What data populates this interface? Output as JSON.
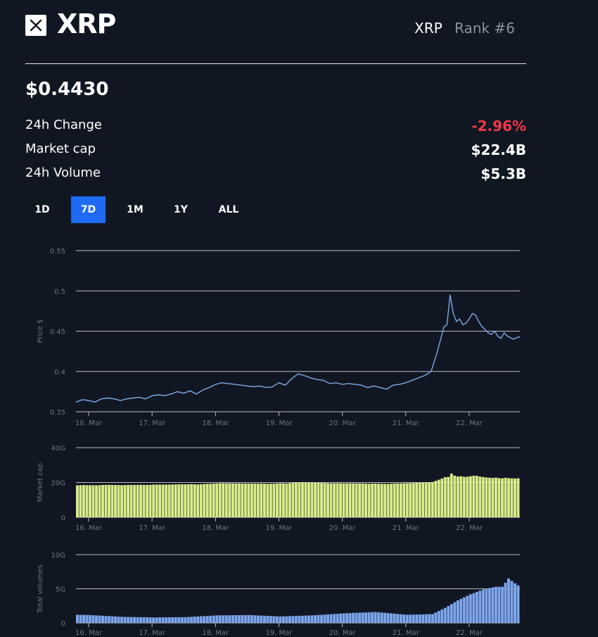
{
  "header": {
    "coin_name": "XRP",
    "ticker": "XRP",
    "rank": "Rank #6",
    "logo_icon": "xrp-logo-icon"
  },
  "price": "$0.4430",
  "stats": {
    "change_label": "24h Change",
    "change_value": "-2.96%",
    "market_cap_label": "Market cap",
    "market_cap_value": "$22.4B",
    "volume_label": "24h Volume",
    "volume_value": "$5.3B"
  },
  "tabs": [
    {
      "label": "1D",
      "active": false
    },
    {
      "label": "7D",
      "active": true
    },
    {
      "label": "1M",
      "active": false
    },
    {
      "label": "1Y",
      "active": false
    },
    {
      "label": "ALL",
      "active": false
    }
  ],
  "colors": {
    "background": "#111722",
    "accent": "#1e6af2",
    "negative": "#f2384b",
    "price_line": "#7aaae8",
    "market_cap_bar": "#d8ee8a",
    "volume_bar": "#7ea6ee",
    "grid": "#b8bcc4",
    "axis_text": "#6d7380"
  },
  "chart_data": [
    {
      "type": "line",
      "name": "price",
      "ylabel": "Price $",
      "ylim": [
        0.35,
        0.55
      ],
      "yticks": [
        "0.35",
        "0.4",
        "0.45",
        "0.5",
        "0.55"
      ],
      "xlim": [
        15.8,
        22.8
      ],
      "xticks": [
        {
          "x": 16,
          "label": "16. Mar"
        },
        {
          "x": 17,
          "label": "17. Mar"
        },
        {
          "x": 18,
          "label": "18. Mar"
        },
        {
          "x": 19,
          "label": "19. Mar"
        },
        {
          "x": 20,
          "label": "20. Mar"
        },
        {
          "x": 21,
          "label": "21. Mar"
        },
        {
          "x": 22,
          "label": "22. Mar"
        }
      ],
      "x": [
        15.8,
        15.9,
        16.0,
        16.1,
        16.2,
        16.3,
        16.4,
        16.5,
        16.6,
        16.7,
        16.8,
        16.9,
        17.0,
        17.1,
        17.2,
        17.3,
        17.4,
        17.5,
        17.6,
        17.7,
        17.8,
        17.9,
        18.0,
        18.1,
        18.2,
        18.3,
        18.4,
        18.5,
        18.6,
        18.7,
        18.8,
        18.9,
        19.0,
        19.1,
        19.2,
        19.3,
        19.4,
        19.5,
        19.6,
        19.7,
        19.8,
        19.9,
        20.0,
        20.1,
        20.2,
        20.3,
        20.4,
        20.5,
        20.6,
        20.7,
        20.8,
        20.9,
        21.0,
        21.1,
        21.2,
        21.3,
        21.4,
        21.5,
        21.55,
        21.6,
        21.65,
        21.7,
        21.75,
        21.8,
        21.85,
        21.9,
        21.95,
        22.0,
        22.05,
        22.1,
        22.15,
        22.2,
        22.25,
        22.3,
        22.35,
        22.4,
        22.45,
        22.5,
        22.55,
        22.6,
        22.65,
        22.7,
        22.75,
        22.8
      ],
      "values": [
        0.362,
        0.365,
        0.364,
        0.362,
        0.366,
        0.367,
        0.366,
        0.364,
        0.366,
        0.367,
        0.368,
        0.366,
        0.37,
        0.371,
        0.37,
        0.372,
        0.375,
        0.373,
        0.376,
        0.372,
        0.377,
        0.38,
        0.384,
        0.386,
        0.385,
        0.384,
        0.383,
        0.382,
        0.381,
        0.382,
        0.38,
        0.381,
        0.386,
        0.383,
        0.391,
        0.397,
        0.395,
        0.392,
        0.39,
        0.389,
        0.385,
        0.386,
        0.384,
        0.385,
        0.384,
        0.383,
        0.38,
        0.382,
        0.38,
        0.378,
        0.383,
        0.384,
        0.386,
        0.389,
        0.392,
        0.395,
        0.4,
        0.425,
        0.44,
        0.455,
        0.458,
        0.495,
        0.472,
        0.462,
        0.465,
        0.458,
        0.46,
        0.465,
        0.472,
        0.47,
        0.462,
        0.456,
        0.452,
        0.448,
        0.446,
        0.45,
        0.444,
        0.441,
        0.448,
        0.444,
        0.442,
        0.44,
        0.442,
        0.443
      ]
    },
    {
      "type": "bar",
      "name": "market_cap",
      "ylabel": "Market cap",
      "ylim": [
        0,
        40
      ],
      "yticks": [
        "0",
        "20G",
        "40G"
      ],
      "xlim": [
        15.8,
        22.8
      ],
      "xticks": [
        {
          "x": 16,
          "label": "16. Mar"
        },
        {
          "x": 17,
          "label": "17. Mar"
        },
        {
          "x": 18,
          "label": "18. Mar"
        },
        {
          "x": 19,
          "label": "19. Mar"
        },
        {
          "x": 20,
          "label": "20. Mar"
        },
        {
          "x": 21,
          "label": "21. Mar"
        },
        {
          "x": 22,
          "label": "22. Mar"
        }
      ],
      "x_start": 15.8,
      "x_step": 0.05,
      "count": 140,
      "values_from": "price",
      "units": "billions USD"
    },
    {
      "type": "bar",
      "name": "total_volume",
      "ylabel": "Total volumes",
      "ylim": [
        0,
        10
      ],
      "yticks": [
        "0",
        "5G",
        "10G"
      ],
      "xlim": [
        15.8,
        22.8
      ],
      "xticks": [
        {
          "x": 16,
          "label": "16. Mar"
        },
        {
          "x": 17,
          "label": "17. Mar"
        },
        {
          "x": 18,
          "label": "18. Mar"
        },
        {
          "x": 19,
          "label": "19. Mar"
        },
        {
          "x": 20,
          "label": "20. Mar"
        },
        {
          "x": 21,
          "label": "21. Mar"
        },
        {
          "x": 22,
          "label": "22. Mar"
        }
      ],
      "x": [
        15.8,
        16.0,
        16.5,
        17.0,
        17.5,
        18.0,
        18.5,
        19.0,
        19.5,
        20.0,
        20.5,
        21.0,
        21.4,
        21.6,
        21.8,
        22.0,
        22.2,
        22.4,
        22.5,
        22.6,
        22.7,
        22.8
      ],
      "values": [
        1.2,
        1.15,
        0.9,
        0.8,
        0.85,
        1.1,
        1.15,
        0.95,
        1.1,
        1.4,
        1.6,
        1.2,
        1.3,
        2.2,
        3.3,
        4.2,
        4.9,
        5.3,
        5.3,
        6.5,
        5.8,
        5.2
      ],
      "units": "billions USD"
    }
  ]
}
